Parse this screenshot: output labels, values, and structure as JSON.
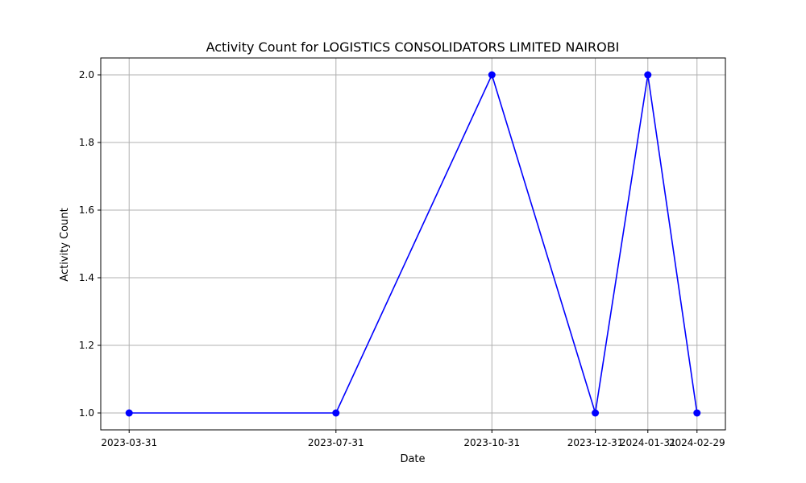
{
  "chart_data": {
    "type": "line",
    "title": "Activity Count for LOGISTICS CONSOLIDATORS LIMITED NAIROBI",
    "xlabel": "Date",
    "ylabel": "Activity Count",
    "x": [
      "2023-03-31",
      "2023-07-31",
      "2023-10-31",
      "2023-12-31",
      "2024-01-31",
      "2024-02-29"
    ],
    "series": [
      {
        "values": [
          1.0,
          1.0,
          2.0,
          1.0,
          2.0,
          1.0
        ],
        "color": "#0000ff",
        "marker": "circle"
      }
    ],
    "ylim": [
      0.95,
      2.05
    ],
    "yticks": [
      "1.0",
      "1.2",
      "1.4",
      "1.6",
      "1.8",
      "2.0"
    ],
    "grid": true,
    "legend": false
  }
}
